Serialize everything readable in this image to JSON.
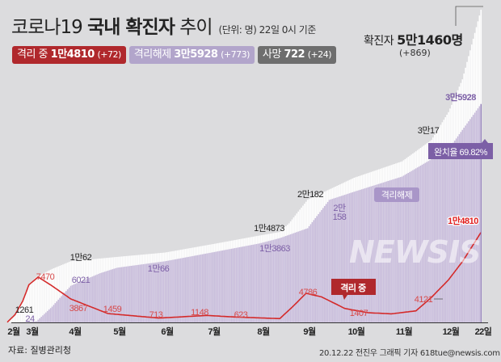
{
  "header": {
    "title_light": "코로나19",
    "title_bold": "국내 확진자",
    "title_tail": "추이",
    "unit_note": "(단위: 명) 22일 0시 기준"
  },
  "badges": {
    "isolated": {
      "label": "격리 중",
      "value": "1만4810",
      "change": "(+72)"
    },
    "released": {
      "label": "격리해제",
      "value": "3만5928",
      "change": "(+773)"
    },
    "deaths": {
      "label": "사망",
      "value": "722",
      "change": "(+24)"
    }
  },
  "total": {
    "label": "확진자",
    "value": "5만1460명",
    "change": "(+869)"
  },
  "colors": {
    "background": "#dcdcde",
    "confirmed": "#ffffff",
    "released": "#c9bddc",
    "isolated": "#d42a2a",
    "released_text": "#7c5fa6",
    "isolated_text": "#d84a4a"
  },
  "chart_data": {
    "type": "area",
    "x_ticks": [
      "2월",
      "3월",
      "4월",
      "5월",
      "6월",
      "7월",
      "8월",
      "9월",
      "10월",
      "11월",
      "12월",
      "22일"
    ],
    "series": [
      {
        "name": "확진자",
        "style": "area",
        "points": [
          [
            "02-20",
            30
          ],
          [
            "02-25",
            1261
          ],
          [
            "03-01",
            3700
          ],
          [
            "03-05",
            6300
          ],
          [
            "03-10",
            7500
          ],
          [
            "03-20",
            8800
          ],
          [
            "04-01",
            10062
          ],
          [
            "05-01",
            10780
          ],
          [
            "06-01",
            11500
          ],
          [
            "07-01",
            12850
          ],
          [
            "08-01",
            14300
          ],
          [
            "08-14",
            14873
          ],
          [
            "08-20",
            16300
          ],
          [
            "09-01",
            20182
          ],
          [
            "10-01",
            23800
          ],
          [
            "11-01",
            26500
          ],
          [
            "11-20",
            30017
          ],
          [
            "12-01",
            34600
          ],
          [
            "12-10",
            40000
          ],
          [
            "12-22",
            51460
          ]
        ]
      },
      {
        "name": "격리해제",
        "style": "area",
        "points": [
          [
            "02-20",
            0
          ],
          [
            "03-01",
            24
          ],
          [
            "03-10",
            200
          ],
          [
            "03-20",
            2600
          ],
          [
            "04-01",
            6021
          ],
          [
            "04-20",
            8100
          ],
          [
            "05-01",
            9000
          ],
          [
            "06-01",
            10066
          ],
          [
            "07-01",
            11500
          ],
          [
            "08-01",
            13000
          ],
          [
            "08-14",
            13863
          ],
          [
            "09-01",
            15500
          ],
          [
            "09-15",
            20158
          ],
          [
            "10-01",
            21500
          ],
          [
            "11-01",
            24000
          ],
          [
            "12-01",
            28500
          ],
          [
            "12-22",
            35928
          ]
        ]
      },
      {
        "name": "격리 중",
        "style": "line",
        "points": [
          [
            "02-20",
            30
          ],
          [
            "02-25",
            1261
          ],
          [
            "03-01",
            3500
          ],
          [
            "03-05",
            6200
          ],
          [
            "03-11",
            7470
          ],
          [
            "03-20",
            6000
          ],
          [
            "04-01",
            3867
          ],
          [
            "04-25",
            1459
          ],
          [
            "05-28",
            713
          ],
          [
            "06-28",
            1148
          ],
          [
            "07-15",
            900
          ],
          [
            "08-14",
            623
          ],
          [
            "08-22",
            2500
          ],
          [
            "08-31",
            4786
          ],
          [
            "09-10",
            4200
          ],
          [
            "09-25",
            2300
          ],
          [
            "10-10",
            1600
          ],
          [
            "10-25",
            1407
          ],
          [
            "11-10",
            1900
          ],
          [
            "11-20",
            4121
          ],
          [
            "12-01",
            7000
          ],
          [
            "12-10",
            10000
          ],
          [
            "12-22",
            14810
          ]
        ]
      }
    ],
    "annotations": {
      "confirmed": [
        "1261",
        "1만62",
        "1만4873",
        "2만182",
        "3만17"
      ],
      "released": [
        "24",
        "6021",
        "1만66",
        "1만3863",
        "2만",
        "158",
        "3만5928"
      ],
      "isolated": [
        "7470",
        "3867",
        "1459",
        "713",
        "1148",
        "623",
        "4786",
        "1407",
        "4121",
        "1만4810"
      ],
      "released_tag": "격리해제",
      "isolated_tag": "격리 중",
      "recovery_rate": "완치율 69.82%"
    },
    "ylim": [
      0,
      51460
    ]
  },
  "footer": {
    "source": "자료: 질병관리청",
    "credit": "20.12.22 전진우 그래픽 기자 618tue@newsis.com",
    "watermark": "NEWSIS"
  }
}
